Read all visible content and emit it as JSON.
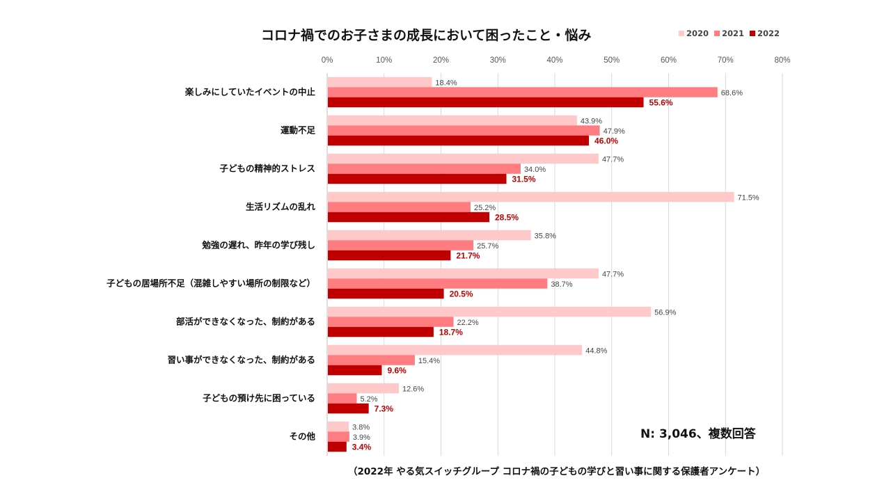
{
  "chart_data": {
    "type": "bar",
    "orientation": "horizontal",
    "title": "コロナ禍でのお子さまの成長において困ったこと・悩み",
    "categories": [
      "楽しみにしていたイベントの中止",
      "運動不足",
      "子どもの精神的ストレス",
      "生活リズムの乱れ",
      "勉強の遅れ、昨年の学び残し",
      "子どもの居場所不足（混雑しやすい場所の制限など）",
      "部活ができなくなった、制約がある",
      "習い事ができなくなった、制約がある",
      "子どもの預け先に困っている",
      "その他"
    ],
    "series": [
      {
        "name": "2020",
        "color": "#ffc9c9",
        "values": [
          18.4,
          43.9,
          47.7,
          71.5,
          35.8,
          47.7,
          56.9,
          44.8,
          12.6,
          3.8
        ]
      },
      {
        "name": "2021",
        "color": "#ff7c80",
        "values": [
          68.6,
          47.9,
          34.0,
          25.2,
          25.7,
          38.7,
          22.2,
          15.4,
          5.2,
          3.9
        ]
      },
      {
        "name": "2022",
        "color": "#c00000",
        "values": [
          55.6,
          46.0,
          31.5,
          28.5,
          21.7,
          20.5,
          18.7,
          9.6,
          7.3,
          3.4
        ]
      }
    ],
    "xlim": [
      0,
      80
    ],
    "xticks": [
      "0%",
      "10%",
      "20%",
      "30%",
      "40%",
      "50%",
      "60%",
      "70%",
      "80%"
    ],
    "xaxis_position": "top",
    "grid": true,
    "legend": "top-right"
  },
  "note": "N: 3,046、複数回答",
  "source": "（2022年 やる気スイッチグループ コロナ禍の子どもの学びと習い事に関する保護者アンケート）"
}
